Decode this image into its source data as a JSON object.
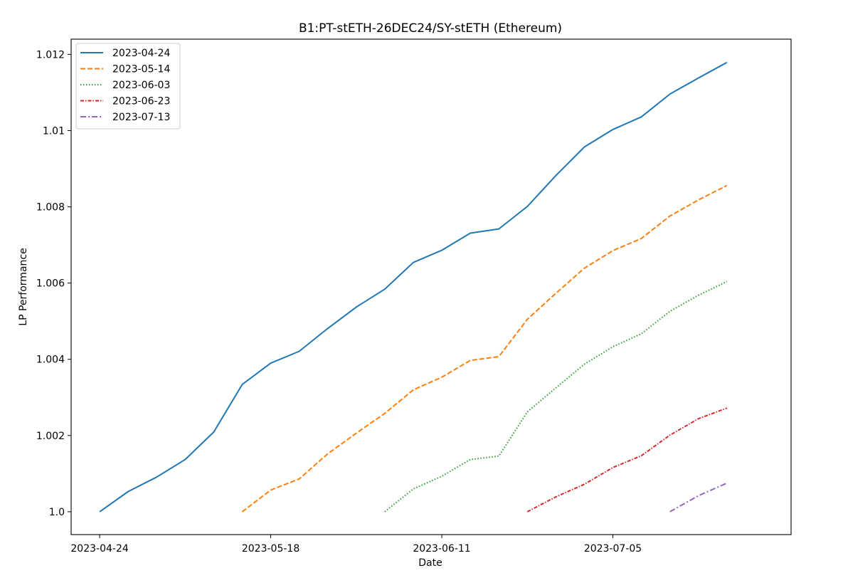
{
  "chart_data": {
    "type": "line",
    "title": "B1:PT-stETH-26DEC24/SY-stETH (Ethereum)",
    "xlabel": "Date",
    "ylabel": "LP Performance",
    "xlim": [
      "2023-04-20",
      "2023-07-30"
    ],
    "ylim": [
      0.9994,
      1.0124
    ],
    "x_ticks": [
      "2023-04-24",
      "2023-05-18",
      "2023-06-11",
      "2023-07-05"
    ],
    "y_ticks": [
      1.0,
      1.002,
      1.004,
      1.006,
      1.008,
      1.01,
      1.012
    ],
    "y_tick_labels": [
      "1.0",
      "1.002",
      "1.004",
      "1.006",
      "1.008",
      "1.01",
      "1.012"
    ],
    "legend_position": "top-left",
    "grid": false,
    "series": [
      {
        "name": "2023-04-24",
        "color": "#1f77b4",
        "dash": "solid",
        "x": [
          "2023-04-24",
          "2023-04-28",
          "2023-05-02",
          "2023-05-06",
          "2023-05-10",
          "2023-05-14",
          "2023-05-18",
          "2023-05-22",
          "2023-05-26",
          "2023-05-30",
          "2023-06-03",
          "2023-06-07",
          "2023-06-11",
          "2023-06-15",
          "2023-06-19",
          "2023-06-23",
          "2023-06-27",
          "2023-07-01",
          "2023-07-05",
          "2023-07-09",
          "2023-07-13",
          "2023-07-17",
          "2023-07-21"
        ],
        "y": [
          1.0,
          1.00053,
          1.00091,
          1.00137,
          1.00209,
          1.00334,
          1.0039,
          1.00421,
          1.00481,
          1.00537,
          1.00584,
          1.00654,
          1.00686,
          1.00731,
          1.00742,
          1.00801,
          1.00882,
          1.00957,
          1.01003,
          1.01036,
          1.01096,
          1.01138,
          1.01179
        ]
      },
      {
        "name": "2023-05-14",
        "color": "#ff7f0e",
        "dash": "dashed",
        "x": [
          "2023-05-14",
          "2023-05-18",
          "2023-05-22",
          "2023-05-26",
          "2023-05-30",
          "2023-06-03",
          "2023-06-07",
          "2023-06-11",
          "2023-06-15",
          "2023-06-19",
          "2023-06-23",
          "2023-06-27",
          "2023-07-01",
          "2023-07-05",
          "2023-07-09",
          "2023-07-13",
          "2023-07-17",
          "2023-07-21"
        ],
        "y": [
          1.0,
          1.00057,
          1.00086,
          1.00152,
          1.00206,
          1.00258,
          1.0032,
          1.00353,
          1.00397,
          1.00407,
          1.00505,
          1.00573,
          1.00639,
          1.00685,
          1.00717,
          1.00776,
          1.00818,
          1.00856
        ]
      },
      {
        "name": "2023-06-03",
        "color": "#2ca02c",
        "dash": "dotted",
        "x": [
          "2023-06-03",
          "2023-06-07",
          "2023-06-11",
          "2023-06-15",
          "2023-06-19",
          "2023-06-23",
          "2023-06-27",
          "2023-07-01",
          "2023-07-05",
          "2023-07-09",
          "2023-07-13",
          "2023-07-17",
          "2023-07-21"
        ],
        "y": [
          1.0,
          1.0006,
          1.00093,
          1.00137,
          1.00146,
          1.00262,
          1.00325,
          1.00387,
          1.00433,
          1.00467,
          1.00526,
          1.00568,
          1.00604
        ]
      },
      {
        "name": "2023-06-23",
        "color": "#d62728",
        "dash": "dashdot-dense",
        "x": [
          "2023-06-23",
          "2023-06-27",
          "2023-07-01",
          "2023-07-05",
          "2023-07-09",
          "2023-07-13",
          "2023-07-17",
          "2023-07-21"
        ],
        "y": [
          1.0,
          1.00039,
          1.00072,
          1.00116,
          1.00147,
          1.00201,
          1.00244,
          1.00272
        ]
      },
      {
        "name": "2023-07-13",
        "color": "#9467bd",
        "dash": "dashdot",
        "x": [
          "2023-07-13",
          "2023-07-17",
          "2023-07-21"
        ],
        "y": [
          1.0,
          1.00042,
          1.00075
        ]
      }
    ]
  }
}
